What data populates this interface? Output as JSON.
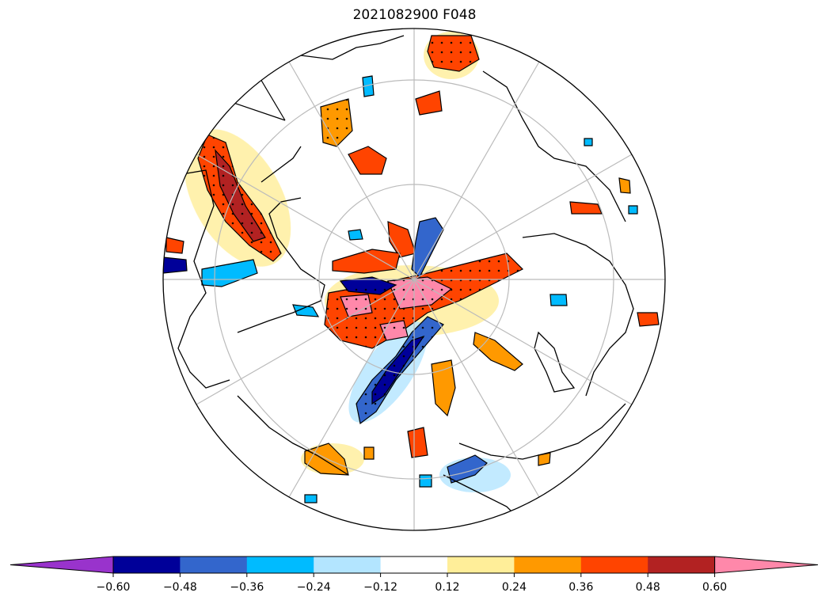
{
  "title": "2021082900 F048",
  "colorbar": {
    "colors": [
      "#9933cc",
      "#000099",
      "#3366cc",
      "#00bbff",
      "#b3e5ff",
      "#ffffff",
      "#ffee99",
      "#ff9900",
      "#ff4400",
      "#b22222",
      "#ff88aa"
    ],
    "ticks": [
      "−0.60",
      "−0.48",
      "−0.36",
      "−0.24",
      "−0.12",
      "0.12",
      "0.24",
      "0.36",
      "0.48",
      "0.60"
    ],
    "extend": "both"
  },
  "map": {
    "projection": "north polar stereographic",
    "gridlines": true,
    "coastlines": true,
    "stippling": true
  }
}
